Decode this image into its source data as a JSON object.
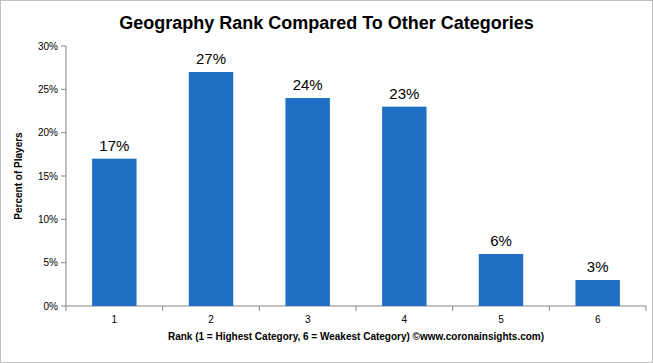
{
  "chart_data": {
    "type": "bar",
    "title": "Geography Rank Compared To Other Categories",
    "x_label": "Rank (1 = Highest Category, 6 = Weakest Category) ©www.coronainsights.com)",
    "y_label": "Percent of Players",
    "categories": [
      "1",
      "2",
      "3",
      "4",
      "5",
      "6"
    ],
    "values": [
      17,
      27,
      24,
      23,
      6,
      3
    ],
    "value_labels": [
      "17%",
      "27%",
      "24%",
      "23%",
      "6%",
      "3%"
    ],
    "color": "#1f6fc4",
    "ylim": [
      0,
      30
    ],
    "yticks": [
      {
        "value": 0,
        "label": "0%"
      },
      {
        "value": 5,
        "label": "5%"
      },
      {
        "value": 10,
        "label": "10%"
      },
      {
        "value": 15,
        "label": "15%"
      },
      {
        "value": 20,
        "label": "20%"
      },
      {
        "value": 25,
        "label": "25%"
      },
      {
        "value": 30,
        "label": "30%"
      }
    ],
    "grid": false,
    "data_labels": true
  }
}
